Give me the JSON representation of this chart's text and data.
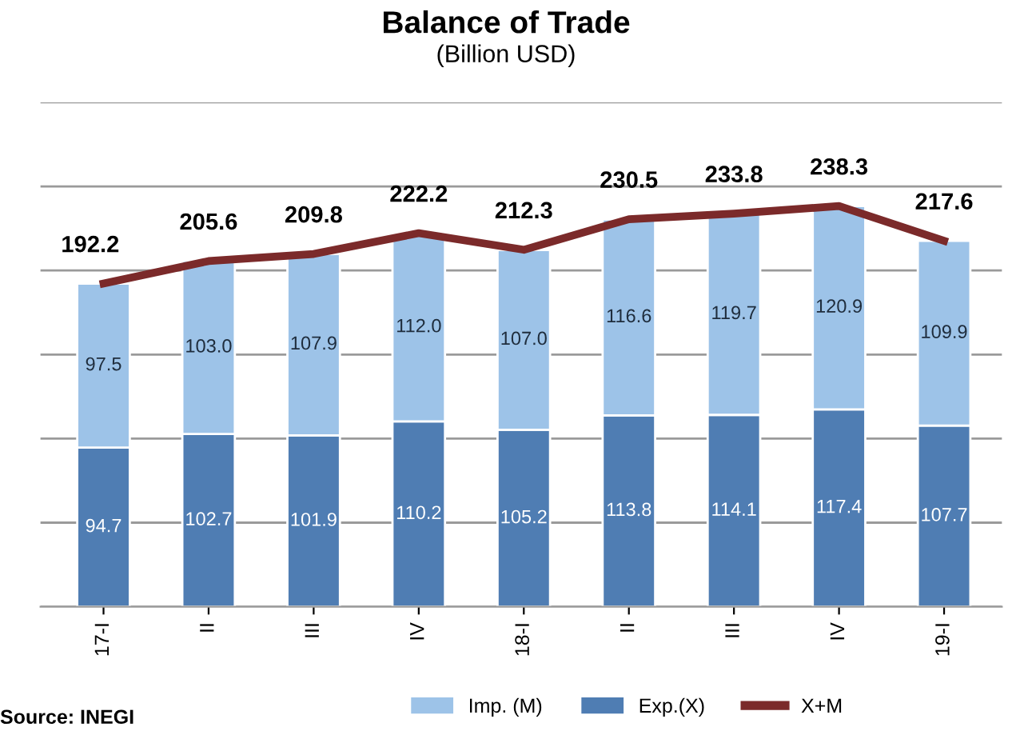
{
  "chart_data": {
    "type": "bar",
    "title": "Balance of Trade",
    "subtitle": "(Billion USD)",
    "categories": [
      "17-I",
      "II",
      "III",
      "IV",
      "18-I",
      "II",
      "III",
      "IV",
      "19-I"
    ],
    "stacked": true,
    "data_labels": true,
    "grid": "y",
    "legend": "bottom",
    "ylim": [
      0,
      300
    ],
    "yticks": [
      {
        "value": 0,
        "label": null
      },
      {
        "value": 50,
        "label": null
      },
      {
        "value": 100,
        "label": null
      },
      {
        "value": 150,
        "label": null
      },
      {
        "value": 200,
        "label": null
      },
      {
        "value": 250,
        "label": null
      },
      {
        "value": 300,
        "label": null
      }
    ],
    "tick_labels": "x",
    "series": [
      {
        "name": "Exp.(X)",
        "color": "#4f7db3",
        "values": [
          94.7,
          102.7,
          101.9,
          110.2,
          105.2,
          113.8,
          114.1,
          117.4,
          107.7
        ]
      },
      {
        "name": "Imp. (M)",
        "color": "#9dc3e8",
        "values": [
          97.5,
          103.0,
          107.9,
          112.0,
          107.0,
          116.6,
          119.7,
          120.9,
          109.9
        ],
        "value_labels": [
          "97.5",
          "103.0",
          "107.9",
          "112.0",
          "107.0",
          "116.6",
          "119.7",
          "120.9",
          "109.9"
        ]
      },
      {
        "name": "X+M",
        "type": "line",
        "color": "#7b2a2a",
        "values": [
          192.2,
          205.6,
          209.8,
          222.2,
          212.3,
          230.5,
          233.8,
          238.3,
          217.6
        ]
      }
    ],
    "annotations": [
      "Source: INEGI"
    ]
  }
}
